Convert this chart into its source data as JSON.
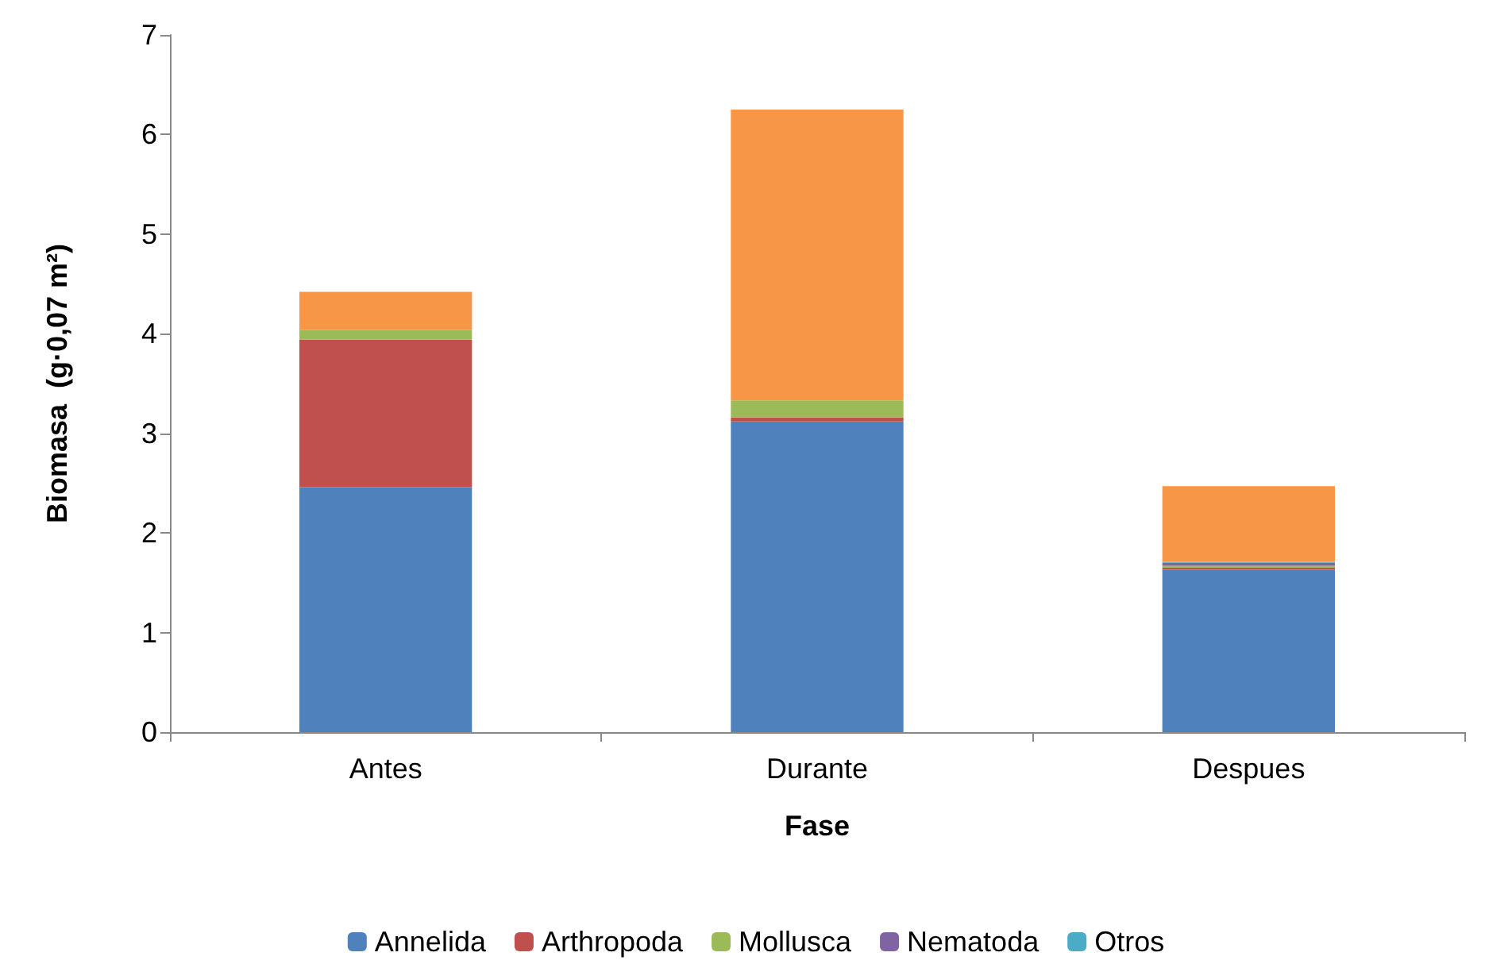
{
  "chart_data": {
    "type": "bar",
    "stacked": true,
    "xlabel": "Fase",
    "ylabel": "Biomasa  (g·0,07 m²)",
    "categories": [
      "Antes",
      "Durante",
      "Despues"
    ],
    "ylim": [
      0,
      7
    ],
    "yticks": [
      0,
      1,
      2,
      3,
      4,
      5,
      6,
      7
    ],
    "grid": false,
    "legend": "bottom",
    "series": [
      {
        "name": "Annelida",
        "color": "#4f81bd",
        "values": [
          2.46,
          3.12,
          1.63
        ]
      },
      {
        "name": "Arthropoda",
        "color": "#c0504d",
        "values": [
          1.48,
          0.04,
          0.02
        ]
      },
      {
        "name": "Mollusca",
        "color": "#9bbb59",
        "values": [
          0.1,
          0.17,
          0.02
        ]
      },
      {
        "name": "Nematoda",
        "color": "#8064a2",
        "values": [
          0,
          0,
          0.03
        ]
      },
      {
        "name": "Otros",
        "color": "#4bacc6",
        "values": [
          0,
          0,
          0.01
        ]
      },
      {
        "color": "#f79646",
        "values": [
          0.38,
          2.92,
          0.76
        ]
      }
    ]
  }
}
